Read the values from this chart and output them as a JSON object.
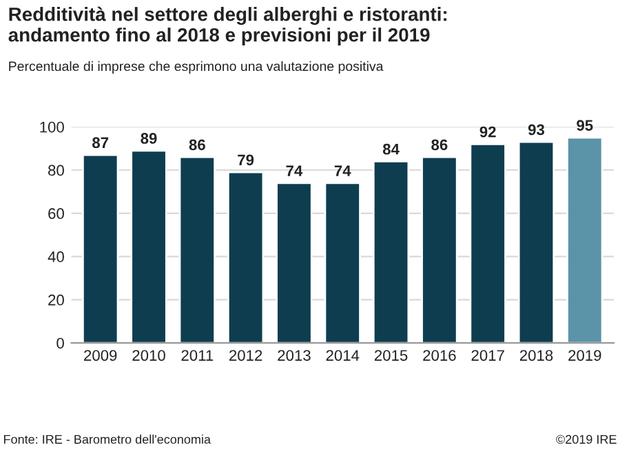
{
  "chart_data": {
    "type": "bar",
    "title": "Redditività nel settore degli alberghi e ristoranti:\nandamento fino al 2018 e previsioni per il 2019",
    "subtitle": "Percentuale di imprese che esprimono una valutazione positiva",
    "categories": [
      "2009",
      "2010",
      "2011",
      "2012",
      "2013",
      "2014",
      "2015",
      "2016",
      "2017",
      "2018",
      "2019"
    ],
    "values": [
      87,
      89,
      86,
      79,
      74,
      74,
      84,
      86,
      92,
      93,
      95
    ],
    "colors": [
      "#0e3d50",
      "#0e3d50",
      "#0e3d50",
      "#0e3d50",
      "#0e3d50",
      "#0e3d50",
      "#0e3d50",
      "#0e3d50",
      "#0e3d50",
      "#0e3d50",
      "#5b93a8"
    ],
    "ylim": [
      0,
      100
    ],
    "yticks": [
      0,
      20,
      40,
      60,
      80,
      100
    ],
    "grid": "y",
    "data_labels": true,
    "annotations": [
      "Fonte: IRE - Barometro dell'economia",
      "©2019 IRE"
    ]
  }
}
